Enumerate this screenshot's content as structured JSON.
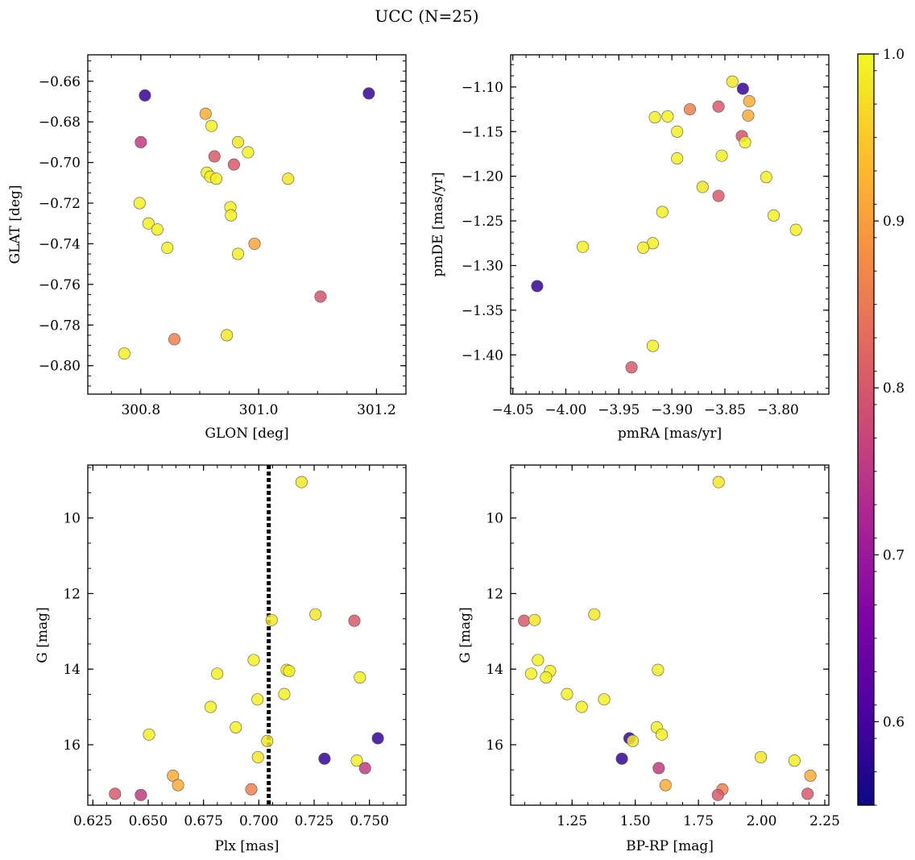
{
  "figure": {
    "title": "UCC (N=25)"
  },
  "colorbar": {
    "ticks": [
      "0.6",
      "0.7",
      "0.8",
      "0.9",
      "1.0"
    ],
    "tick_values": [
      0.6,
      0.7,
      0.8,
      0.9,
      1.0
    ],
    "range": [
      0.55,
      1.0
    ],
    "colormap": "plasma"
  },
  "chart_data": [
    {
      "type": "scatter",
      "title": "",
      "xlabel": "GLON [deg]",
      "ylabel": "GLAT [deg]",
      "xlim": [
        300.71,
        301.25
      ],
      "ylim": [
        -0.814,
        -0.647
      ],
      "xticks": [
        300.8,
        301.0,
        301.2
      ],
      "xtick_labels": [
        "300.8",
        "301.0",
        "301.2"
      ],
      "yticks": [
        -0.66,
        -0.68,
        -0.7,
        -0.72,
        -0.74,
        -0.76,
        -0.78,
        -0.8
      ],
      "ytick_labels": [
        "−0.66",
        "−0.68",
        "−0.70",
        "−0.72",
        "−0.74",
        "−0.76",
        "−0.78",
        "−0.80"
      ],
      "points": [
        {
          "x": 300.807,
          "y": -0.667,
          "c": 0.56
        },
        {
          "x": 301.187,
          "y": -0.666,
          "c": 0.56
        },
        {
          "x": 300.8,
          "y": -0.69,
          "c": 0.74
        },
        {
          "x": 300.91,
          "y": -0.676,
          "c": 0.91
        },
        {
          "x": 300.92,
          "y": -0.682,
          "c": 0.99
        },
        {
          "x": 300.965,
          "y": -0.69,
          "c": 0.98
        },
        {
          "x": 300.982,
          "y": -0.695,
          "c": 0.99
        },
        {
          "x": 300.925,
          "y": -0.697,
          "c": 0.79
        },
        {
          "x": 300.958,
          "y": -0.701,
          "c": 0.79
        },
        {
          "x": 300.912,
          "y": -0.705,
          "c": 0.99
        },
        {
          "x": 300.918,
          "y": -0.707,
          "c": 0.99
        },
        {
          "x": 300.928,
          "y": -0.708,
          "c": 0.99
        },
        {
          "x": 301.05,
          "y": -0.708,
          "c": 0.98
        },
        {
          "x": 300.798,
          "y": -0.72,
          "c": 0.99
        },
        {
          "x": 300.952,
          "y": -0.722,
          "c": 0.99
        },
        {
          "x": 300.953,
          "y": -0.726,
          "c": 0.99
        },
        {
          "x": 300.813,
          "y": -0.73,
          "c": 0.99
        },
        {
          "x": 300.828,
          "y": -0.733,
          "c": 0.99
        },
        {
          "x": 300.845,
          "y": -0.742,
          "c": 0.99
        },
        {
          "x": 300.993,
          "y": -0.74,
          "c": 0.9
        },
        {
          "x": 300.965,
          "y": -0.745,
          "c": 0.99
        },
        {
          "x": 301.105,
          "y": -0.766,
          "c": 0.78
        },
        {
          "x": 300.946,
          "y": -0.785,
          "c": 0.98
        },
        {
          "x": 300.857,
          "y": -0.787,
          "c": 0.85
        },
        {
          "x": 300.772,
          "y": -0.794,
          "c": 0.99
        }
      ]
    },
    {
      "type": "scatter",
      "title": "",
      "xlabel": "pmRA [mas/yr]",
      "ylabel": "pmDE [mas/yr]",
      "xlim": [
        -4.052,
        -3.752
      ],
      "ylim": [
        -1.444,
        -1.064
      ],
      "xticks": [
        -4.05,
        -4.0,
        -3.95,
        -3.9,
        -3.85,
        -3.8
      ],
      "xtick_labels": [
        "−4.05",
        "−4.00",
        "−3.95",
        "−3.90",
        "−3.85",
        "−3.80"
      ],
      "yticks": [
        -1.1,
        -1.15,
        -1.2,
        -1.25,
        -1.3,
        -1.35,
        -1.4
      ],
      "ytick_labels": [
        "−1.10",
        "−1.15",
        "−1.20",
        "−1.25",
        "−1.30",
        "−1.35",
        "−1.40"
      ],
      "points": [
        {
          "x": -3.843,
          "y": -1.094,
          "c": 0.98
        },
        {
          "x": -3.833,
          "y": -1.102,
          "c": 0.56
        },
        {
          "x": -3.827,
          "y": -1.116,
          "c": 0.91
        },
        {
          "x": -3.856,
          "y": -1.122,
          "c": 0.79
        },
        {
          "x": -3.883,
          "y": -1.125,
          "c": 0.85
        },
        {
          "x": -3.916,
          "y": -1.134,
          "c": 0.99
        },
        {
          "x": -3.904,
          "y": -1.133,
          "c": 0.99
        },
        {
          "x": -3.828,
          "y": -1.132,
          "c": 0.91
        },
        {
          "x": -3.895,
          "y": -1.15,
          "c": 0.99
        },
        {
          "x": -3.834,
          "y": -1.155,
          "c": 0.78
        },
        {
          "x": -3.831,
          "y": -1.162,
          "c": 0.99
        },
        {
          "x": -3.853,
          "y": -1.177,
          "c": 0.99
        },
        {
          "x": -3.895,
          "y": -1.18,
          "c": 0.99
        },
        {
          "x": -3.811,
          "y": -1.201,
          "c": 0.99
        },
        {
          "x": -3.871,
          "y": -1.212,
          "c": 0.98
        },
        {
          "x": -3.856,
          "y": -1.222,
          "c": 0.79
        },
        {
          "x": -3.909,
          "y": -1.24,
          "c": 0.99
        },
        {
          "x": -3.804,
          "y": -1.244,
          "c": 0.99
        },
        {
          "x": -3.783,
          "y": -1.26,
          "c": 0.99
        },
        {
          "x": -3.918,
          "y": -1.275,
          "c": 0.99
        },
        {
          "x": -3.984,
          "y": -1.279,
          "c": 0.99
        },
        {
          "x": -3.927,
          "y": -1.28,
          "c": 0.99
        },
        {
          "x": -4.027,
          "y": -1.323,
          "c": 0.56
        },
        {
          "x": -3.918,
          "y": -1.39,
          "c": 0.99
        },
        {
          "x": -3.938,
          "y": -1.414,
          "c": 0.79
        }
      ]
    },
    {
      "type": "scatter",
      "title": "",
      "xlabel": "Plx [mas]",
      "ylabel": "G [mag]",
      "xlim": [
        0.6227,
        0.7665
      ],
      "ylim": [
        17.6,
        8.6
      ],
      "xticks": [
        0.625,
        0.65,
        0.675,
        0.7,
        0.725,
        0.75
      ],
      "xtick_labels": [
        "0.625",
        "0.650",
        "0.675",
        "0.700",
        "0.725",
        "0.750"
      ],
      "yticks": [
        10,
        12,
        14,
        16
      ],
      "ytick_labels": [
        "10",
        "12",
        "14",
        "16"
      ],
      "vline": {
        "x": 0.7045,
        "style": "dotted"
      },
      "points": [
        {
          "x": 0.7193,
          "y": 9.05,
          "c": 0.98
        },
        {
          "x": 0.7256,
          "y": 12.55,
          "c": 0.98
        },
        {
          "x": 0.7058,
          "y": 12.7,
          "c": 0.98
        },
        {
          "x": 0.7432,
          "y": 12.72,
          "c": 0.79
        },
        {
          "x": 0.6977,
          "y": 13.76,
          "c": 0.99
        },
        {
          "x": 0.7126,
          "y": 14.02,
          "c": 0.99
        },
        {
          "x": 0.7137,
          "y": 14.05,
          "c": 0.99
        },
        {
          "x": 0.6812,
          "y": 14.12,
          "c": 0.99
        },
        {
          "x": 0.7457,
          "y": 14.22,
          "c": 0.99
        },
        {
          "x": 0.7115,
          "y": 14.66,
          "c": 0.99
        },
        {
          "x": 0.6994,
          "y": 14.8,
          "c": 0.99
        },
        {
          "x": 0.6782,
          "y": 15.0,
          "c": 0.99
        },
        {
          "x": 0.6896,
          "y": 15.54,
          "c": 0.99
        },
        {
          "x": 0.6504,
          "y": 15.73,
          "c": 0.99
        },
        {
          "x": 0.7538,
          "y": 15.83,
          "c": 0.56
        },
        {
          "x": 0.7038,
          "y": 15.9,
          "c": 0.98
        },
        {
          "x": 0.6996,
          "y": 16.33,
          "c": 0.98
        },
        {
          "x": 0.7297,
          "y": 16.37,
          "c": 0.56
        },
        {
          "x": 0.7443,
          "y": 16.42,
          "c": 0.99
        },
        {
          "x": 0.748,
          "y": 16.62,
          "c": 0.74
        },
        {
          "x": 0.6612,
          "y": 16.82,
          "c": 0.91
        },
        {
          "x": 0.6635,
          "y": 17.07,
          "c": 0.91
        },
        {
          "x": 0.6966,
          "y": 17.18,
          "c": 0.85
        },
        {
          "x": 0.635,
          "y": 17.3,
          "c": 0.79
        },
        {
          "x": 0.6467,
          "y": 17.33,
          "c": 0.74
        }
      ]
    },
    {
      "type": "scatter",
      "title": "",
      "xlabel": "BP-RP [mag]",
      "ylabel": "G [mag]",
      "xlim": [
        1.007,
        2.266
      ],
      "ylim": [
        17.6,
        8.6
      ],
      "xticks": [
        1.25,
        1.5,
        1.75,
        2.0,
        2.25
      ],
      "xtick_labels": [
        "1.25",
        "1.50",
        "1.75",
        "2.00",
        "2.25"
      ],
      "yticks": [
        10,
        12,
        14,
        16
      ],
      "ytick_labels": [
        "10",
        "12",
        "14",
        "16"
      ],
      "points": [
        {
          "x": 1.83,
          "y": 9.05,
          "c": 0.98
        },
        {
          "x": 1.338,
          "y": 12.55,
          "c": 0.98
        },
        {
          "x": 1.06,
          "y": 12.72,
          "c": 0.79
        },
        {
          "x": 1.102,
          "y": 12.7,
          "c": 0.98
        },
        {
          "x": 1.115,
          "y": 13.76,
          "c": 0.99
        },
        {
          "x": 1.59,
          "y": 14.02,
          "c": 0.99
        },
        {
          "x": 1.163,
          "y": 14.05,
          "c": 0.99
        },
        {
          "x": 1.088,
          "y": 14.12,
          "c": 0.99
        },
        {
          "x": 1.147,
          "y": 14.22,
          "c": 0.99
        },
        {
          "x": 1.23,
          "y": 14.66,
          "c": 0.99
        },
        {
          "x": 1.377,
          "y": 14.8,
          "c": 0.99
        },
        {
          "x": 1.288,
          "y": 15.0,
          "c": 0.99
        },
        {
          "x": 1.585,
          "y": 15.54,
          "c": 0.99
        },
        {
          "x": 1.605,
          "y": 15.73,
          "c": 0.99
        },
        {
          "x": 1.477,
          "y": 15.83,
          "c": 0.56
        },
        {
          "x": 1.49,
          "y": 15.9,
          "c": 0.98
        },
        {
          "x": 1.447,
          "y": 16.37,
          "c": 0.56
        },
        {
          "x": 1.997,
          "y": 16.33,
          "c": 0.98
        },
        {
          "x": 2.13,
          "y": 16.42,
          "c": 0.99
        },
        {
          "x": 1.593,
          "y": 16.62,
          "c": 0.74
        },
        {
          "x": 2.193,
          "y": 16.82,
          "c": 0.91
        },
        {
          "x": 1.62,
          "y": 17.07,
          "c": 0.91
        },
        {
          "x": 1.845,
          "y": 17.18,
          "c": 0.85
        },
        {
          "x": 2.182,
          "y": 17.3,
          "c": 0.79
        },
        {
          "x": 1.827,
          "y": 17.33,
          "c": 0.79
        }
      ]
    }
  ]
}
